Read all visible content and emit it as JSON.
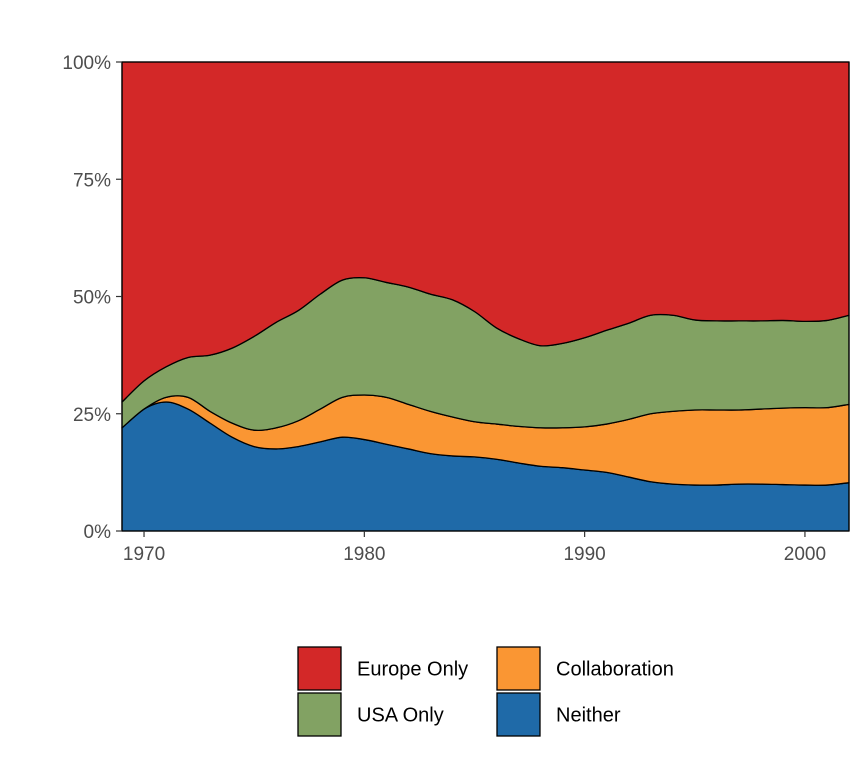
{
  "chart_data": {
    "type": "area",
    "stacked": true,
    "normalized": true,
    "x": [
      1969,
      1970,
      1971,
      1972,
      1973,
      1974,
      1975,
      1976,
      1977,
      1978,
      1979,
      1980,
      1981,
      1982,
      1983,
      1984,
      1985,
      1986,
      1987,
      1988,
      1989,
      1990,
      1991,
      1992,
      1993,
      1994,
      1995,
      1996,
      1997,
      1998,
      1999,
      2000,
      2001,
      2002
    ],
    "xlim": [
      1969,
      2002
    ],
    "x_ticks": [
      1970,
      1980,
      1990,
      2000
    ],
    "x_tick_labels": [
      "1970",
      "1980",
      "1990",
      "2000"
    ],
    "ylim": [
      0,
      100
    ],
    "y_ticks": [
      0,
      25,
      50,
      75,
      100
    ],
    "y_tick_labels": [
      "0%",
      "25%",
      "50%",
      "75%",
      "100%"
    ],
    "series": [
      {
        "name": "Neither",
        "color": "#1f6aa8",
        "values": [
          22,
          26,
          27.5,
          26,
          23,
          20,
          18,
          17.5,
          18,
          19,
          20,
          19.5,
          18.5,
          17.5,
          16.5,
          16,
          15.8,
          15.3,
          14.5,
          13.8,
          13.5,
          13,
          12.5,
          11.5,
          10.5,
          10,
          9.8,
          9.8,
          10,
          10,
          9.9,
          9.8,
          9.8,
          10.3
        ]
      },
      {
        "name": "Collaboration",
        "color": "#fa9633",
        "values": [
          0,
          0,
          1,
          2.5,
          2.5,
          3,
          3.5,
          4.5,
          5.5,
          7,
          8.5,
          9.5,
          10,
          9.5,
          9,
          8.3,
          7.5,
          7.5,
          7.8,
          8.2,
          8.5,
          9.2,
          10.3,
          12.3,
          14.5,
          15.5,
          16,
          16,
          15.8,
          16,
          16.3,
          16.5,
          16.5,
          16.7
        ]
      },
      {
        "name": "USA Only",
        "color": "#82a263",
        "values": [
          5.5,
          6,
          6.5,
          8.5,
          12,
          16,
          20,
          22.5,
          23.5,
          24.5,
          25,
          25,
          24.5,
          25,
          25,
          25,
          23.5,
          20.5,
          18.7,
          17.5,
          18,
          19,
          20,
          20.5,
          21,
          20.5,
          19.2,
          19,
          19,
          18.8,
          18.7,
          18.4,
          18.6,
          19
        ]
      },
      {
        "name": "Europe Only",
        "color": "#d32828",
        "values": [
          72.5,
          68,
          65,
          63,
          62.5,
          61,
          58.5,
          55.5,
          53,
          49.5,
          46.5,
          46,
          47,
          48,
          49.5,
          50.7,
          53.2,
          56.7,
          59,
          60.5,
          60,
          58.8,
          57.2,
          55.7,
          54,
          54,
          55,
          55.2,
          55.2,
          55.2,
          55.1,
          55.3,
          55.1,
          54
        ]
      }
    ],
    "legend": {
      "position": "bottom",
      "entries": [
        "Europe Only",
        "USA Only",
        "Collaboration",
        "Neither"
      ]
    },
    "grid": false,
    "title": "",
    "xlabel": "",
    "ylabel": ""
  }
}
